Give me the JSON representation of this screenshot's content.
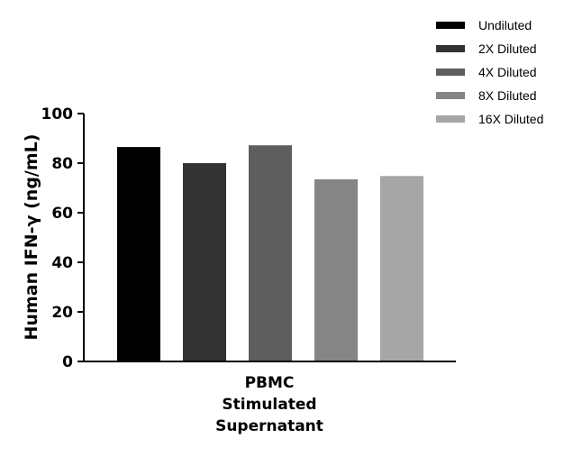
{
  "chart_data": {
    "type": "bar",
    "title": "",
    "xlabel": "",
    "ylabel": "Human IFN-γ (ng/mL)",
    "categories": [
      "PBMC Stimulated Supernatant"
    ],
    "category_lines": [
      "PBMC",
      "Stimulated",
      "Supernatant"
    ],
    "ylim": [
      0,
      100
    ],
    "yticks": [
      0,
      20,
      40,
      60,
      80,
      100
    ],
    "grid": false,
    "legend_position": "top-right",
    "series": [
      {
        "name": "Undiluted",
        "values": [
          86.5
        ],
        "color": "#000000"
      },
      {
        "name": "2X Diluted",
        "values": [
          80
        ],
        "color": "#333333"
      },
      {
        "name": "4X Diluted",
        "values": [
          87.2
        ],
        "color": "#5e5e5e"
      },
      {
        "name": "8X Diluted",
        "values": [
          73.5
        ],
        "color": "#858585"
      },
      {
        "name": "16X Diluted",
        "values": [
          74.8
        ],
        "color": "#a6a6a6"
      }
    ]
  }
}
